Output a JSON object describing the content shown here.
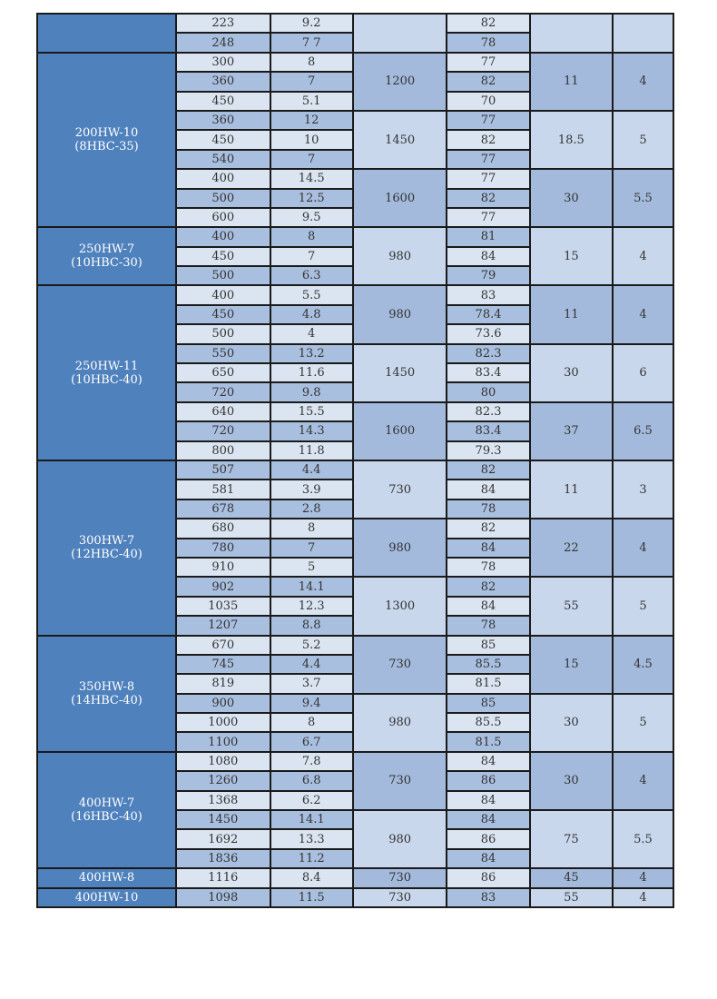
{
  "colors": {
    "model_bg": "#4f81bd",
    "light": "#dbe5f1",
    "mid": "#a9bfdf"
  },
  "models": [
    {
      "name": "",
      "alias": "",
      "groups": [
        {
          "speed": "",
          "power": "",
          "npsh": "",
          "rows": [
            [
              "223",
              "9.2",
              "82"
            ],
            [
              "248",
              "7 7",
              "78"
            ]
          ]
        }
      ]
    },
    {
      "name": "200HW-10",
      "alias": "(8HBC-35)",
      "groups": [
        {
          "speed": "1200",
          "power": "11",
          "npsh": "4",
          "rows": [
            [
              "300",
              "8",
              "77"
            ],
            [
              "360",
              "7",
              "82"
            ],
            [
              "450",
              "5.1",
              "70"
            ]
          ]
        },
        {
          "speed": "1450",
          "power": "18.5",
          "npsh": "5",
          "rows": [
            [
              "360",
              "12",
              "77"
            ],
            [
              "450",
              "10",
              "82"
            ],
            [
              "540",
              "7",
              "77"
            ]
          ]
        },
        {
          "speed": "1600",
          "power": "30",
          "npsh": "5.5",
          "rows": [
            [
              "400",
              "14.5",
              "77"
            ],
            [
              "500",
              "12.5",
              "82"
            ],
            [
              "600",
              "9.5",
              "77"
            ]
          ]
        }
      ]
    },
    {
      "name": "250HW-7",
      "alias": "(10HBC-30)",
      "groups": [
        {
          "speed": "980",
          "power": "15",
          "npsh": "4",
          "rows": [
            [
              "400",
              "8",
              "81"
            ],
            [
              "450",
              "7",
              "84"
            ],
            [
              "500",
              "6.3",
              "79"
            ]
          ]
        }
      ]
    },
    {
      "name": "250HW-11",
      "alias": "(10HBC-40)",
      "groups": [
        {
          "speed": "980",
          "power": "11",
          "npsh": "4",
          "rows": [
            [
              "400",
              "5.5",
              "83"
            ],
            [
              "450",
              "4.8",
              "78.4"
            ],
            [
              "500",
              "4",
              "73.6"
            ]
          ]
        },
        {
          "speed": "1450",
          "power": "30",
          "npsh": "6",
          "rows": [
            [
              "550",
              "13.2",
              "82.3"
            ],
            [
              "650",
              "11.6",
              "83.4"
            ],
            [
              "720",
              "9.8",
              "80"
            ]
          ]
        },
        {
          "speed": "1600",
          "power": "37",
          "npsh": "6.5",
          "rows": [
            [
              "640",
              "15.5",
              "82.3"
            ],
            [
              "720",
              "14.3",
              "83.4"
            ],
            [
              "800",
              "11.8",
              "79.3"
            ]
          ]
        }
      ]
    },
    {
      "name": "300HW-7",
      "alias": "(12HBC-40)",
      "groups": [
        {
          "speed": "730",
          "power": "11",
          "npsh": "3",
          "rows": [
            [
              "507",
              "4.4",
              "82"
            ],
            [
              "581",
              "3.9",
              "84"
            ],
            [
              "678",
              "2.8",
              "78"
            ]
          ]
        },
        {
          "speed": "980",
          "power": "22",
          "npsh": "4",
          "rows": [
            [
              "680",
              "8",
              "82"
            ],
            [
              "780",
              "7",
              "84"
            ],
            [
              "910",
              "5",
              "78"
            ]
          ]
        },
        {
          "speed": "1300",
          "power": "55",
          "npsh": "5",
          "rows": [
            [
              "902",
              "14.1",
              "82"
            ],
            [
              "1035",
              "12.3",
              "84"
            ],
            [
              "1207",
              "8.8",
              "78"
            ]
          ]
        }
      ]
    },
    {
      "name": "350HW-8",
      "alias": "(14HBC-40)",
      "groups": [
        {
          "speed": "730",
          "power": "15",
          "npsh": "4.5",
          "rows": [
            [
              "670",
              "5.2",
              "85"
            ],
            [
              "745",
              "4.4",
              "85.5"
            ],
            [
              "819",
              "3.7",
              "81.5"
            ]
          ]
        },
        {
          "speed": "980",
          "power": "30",
          "npsh": "5",
          "rows": [
            [
              "900",
              "9.4",
              "85"
            ],
            [
              "1000",
              "8",
              "85.5"
            ],
            [
              "1100",
              "6.7",
              "81.5"
            ]
          ]
        }
      ]
    },
    {
      "name": "400HW-7",
      "alias": "(16HBC-40)",
      "groups": [
        {
          "speed": "730",
          "power": "30",
          "npsh": "4",
          "rows": [
            [
              "1080",
              "7.8",
              "84"
            ],
            [
              "1260",
              "6.8",
              "86"
            ],
            [
              "1368",
              "6.2",
              "84"
            ]
          ]
        },
        {
          "speed": "980",
          "power": "75",
          "npsh": "5.5",
          "rows": [
            [
              "1450",
              "14.1",
              "84"
            ],
            [
              "1692",
              "13.3",
              "86"
            ],
            [
              "1836",
              "11.2",
              "84"
            ]
          ]
        }
      ]
    },
    {
      "name": "400HW-8",
      "alias": "",
      "groups": [
        {
          "speed": "730",
          "power": "45",
          "npsh": "4",
          "rows": [
            [
              "1116",
              "8.4",
              "86"
            ]
          ]
        }
      ]
    },
    {
      "name": "400HW-10",
      "alias": "",
      "groups": [
        {
          "speed": "730",
          "power": "55",
          "npsh": "4",
          "rows": [
            [
              "1098",
              "11.5",
              "83"
            ]
          ]
        }
      ]
    }
  ]
}
